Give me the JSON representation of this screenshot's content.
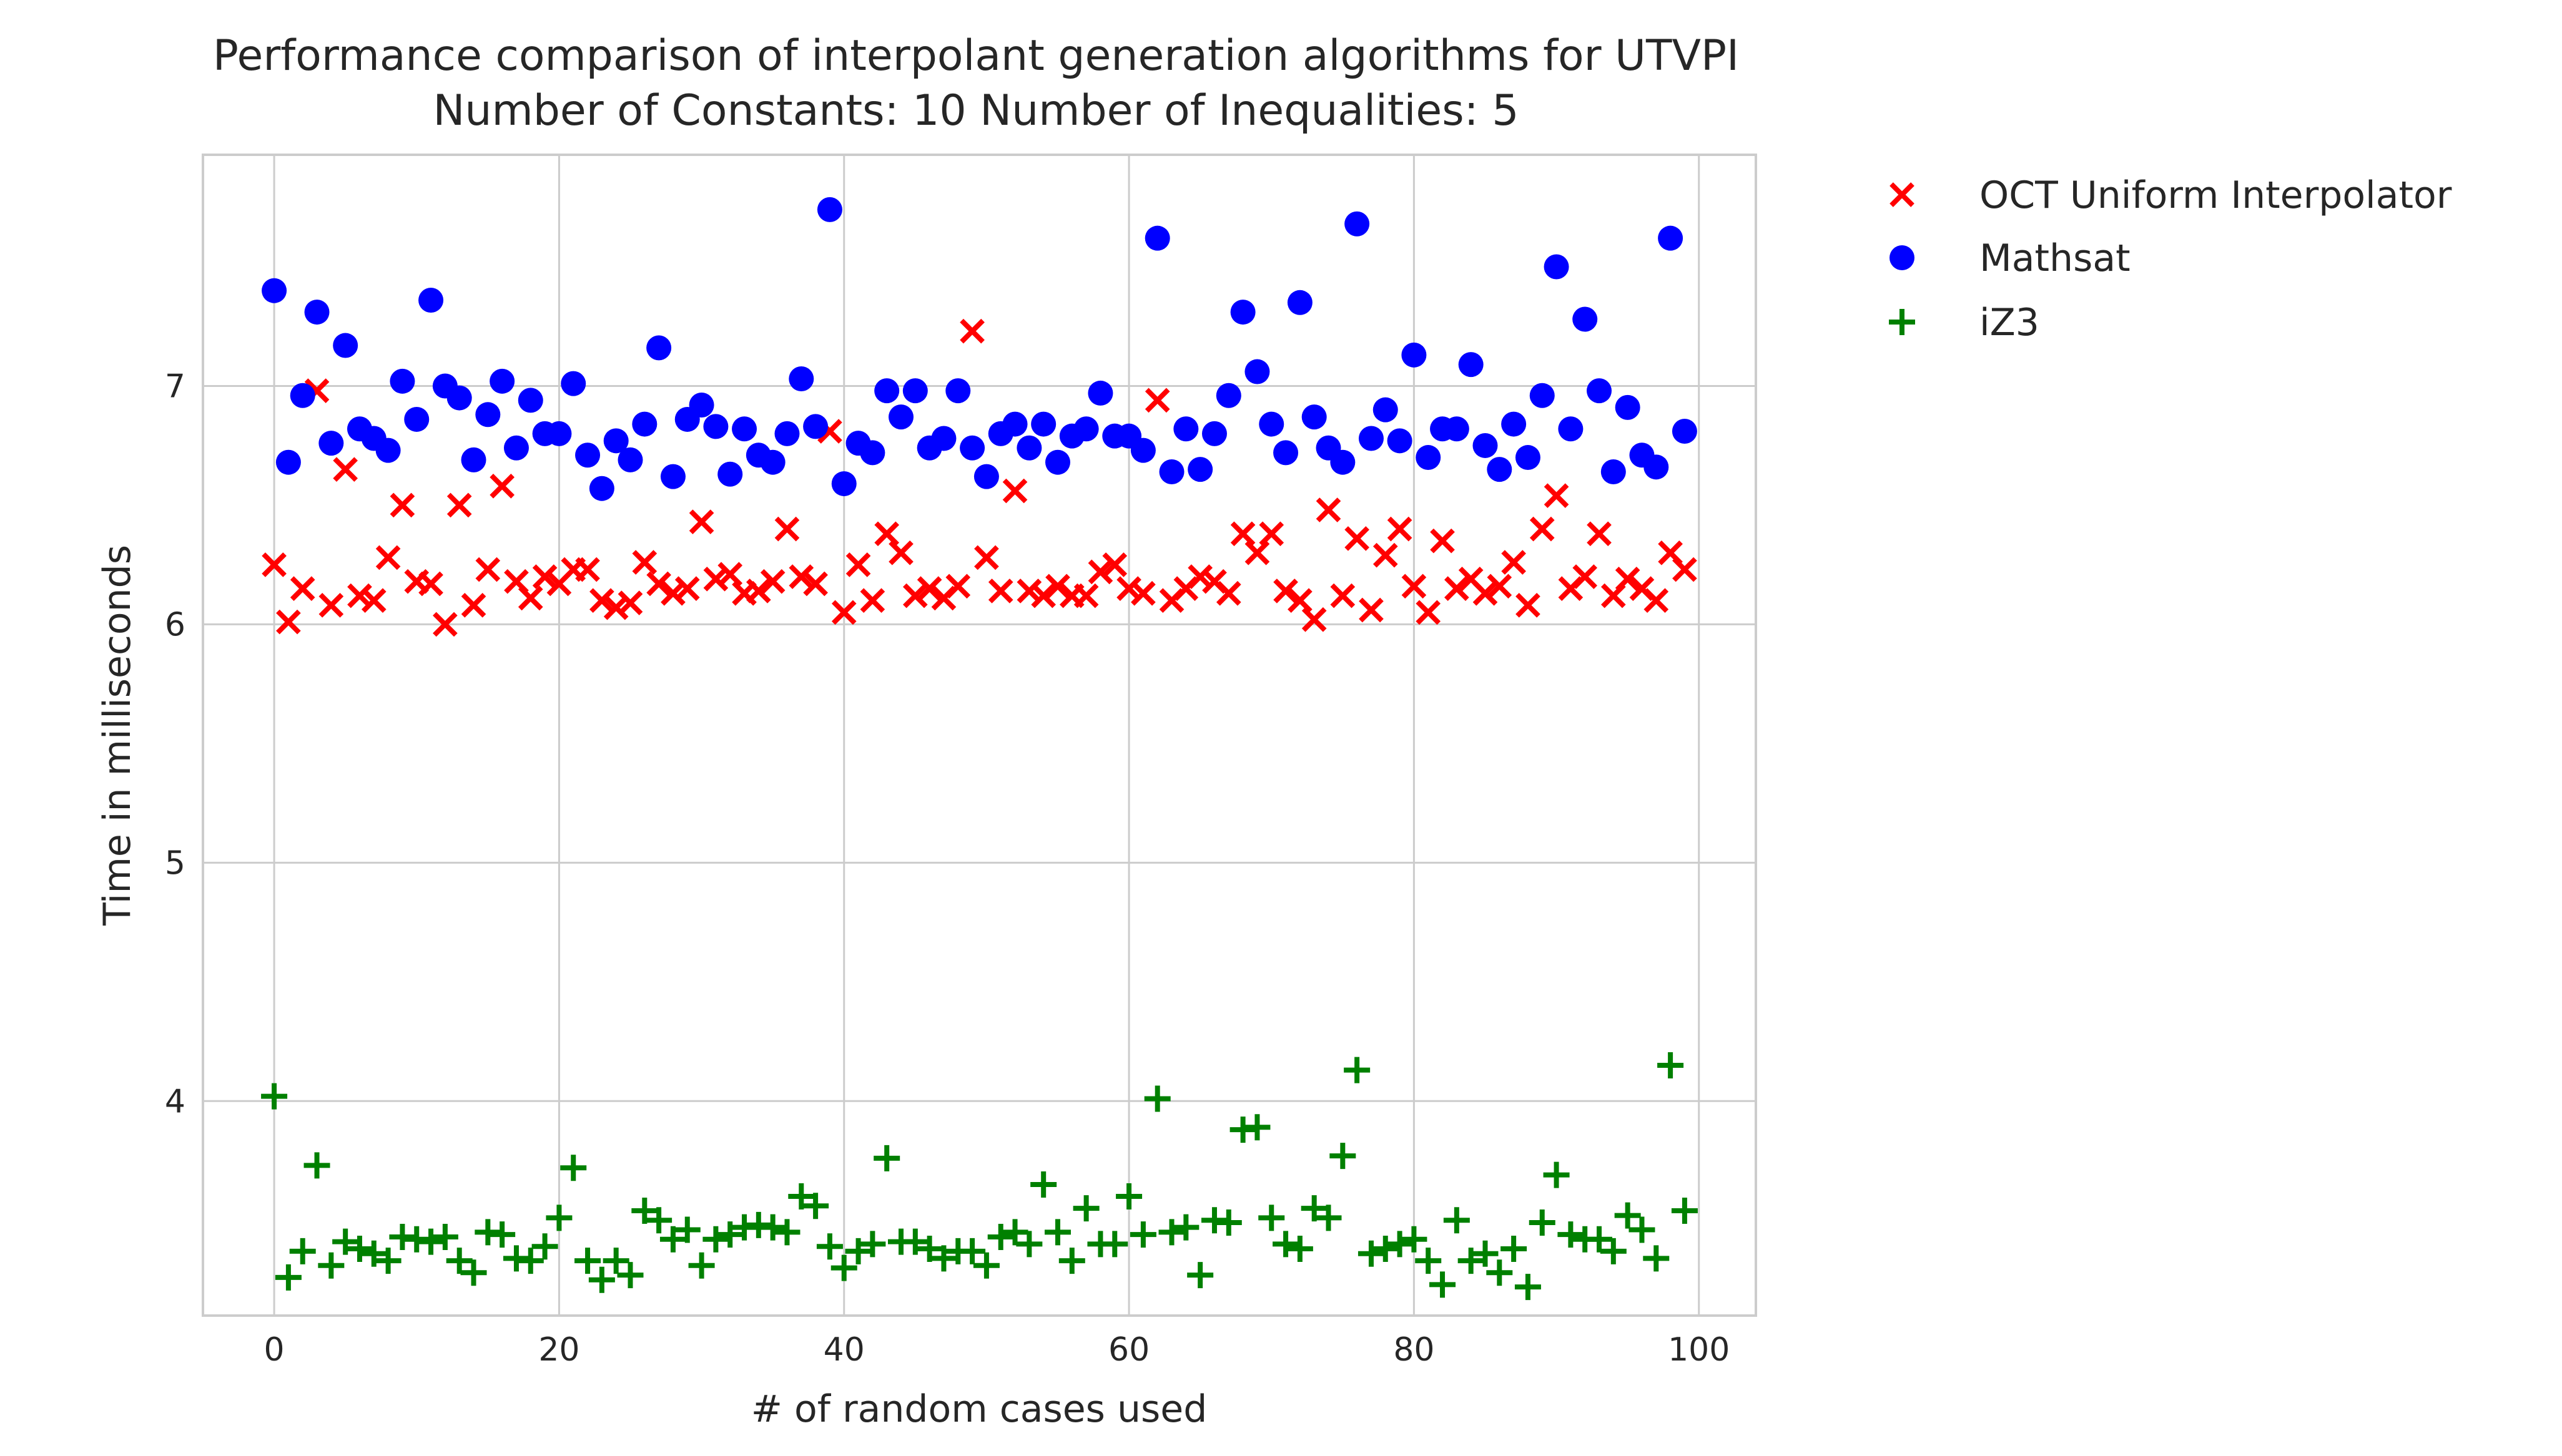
{
  "chart_data": {
    "type": "scatter",
    "title": "Performance comparison of interpolant generation algorithms for UTVPI",
    "subtitle": "Number of Constants: 10 Number of Inequalities: 5",
    "xlabel": "# of random cases used",
    "ylabel": "Time in milliseconds",
    "xlim": [
      -5,
      104
    ],
    "ylim": [
      3.1,
      7.97
    ],
    "xticks": [
      0,
      20,
      40,
      60,
      80,
      100
    ],
    "yticks": [
      4,
      5,
      6,
      7
    ],
    "grid": true,
    "legend_position": "outside-right-top",
    "x": [
      0,
      1,
      2,
      3,
      4,
      5,
      6,
      7,
      8,
      9,
      10,
      11,
      12,
      13,
      14,
      15,
      16,
      17,
      18,
      19,
      20,
      21,
      22,
      23,
      24,
      25,
      26,
      27,
      28,
      29,
      30,
      31,
      32,
      33,
      34,
      35,
      36,
      37,
      38,
      39,
      40,
      41,
      42,
      43,
      44,
      45,
      46,
      47,
      48,
      49,
      50,
      51,
      52,
      53,
      54,
      55,
      56,
      57,
      58,
      59,
      60,
      61,
      62,
      63,
      64,
      65,
      66,
      67,
      68,
      69,
      70,
      71,
      72,
      73,
      74,
      75,
      76,
      77,
      78,
      79,
      80,
      81,
      82,
      83,
      84,
      85,
      86,
      87,
      88,
      89,
      90,
      91,
      92,
      93,
      94,
      95,
      96,
      97,
      98,
      99
    ],
    "series": [
      {
        "name": "OCT Uniform Interpolator",
        "marker": "x",
        "color": "#ff0000",
        "values": [
          6.25,
          6.01,
          6.15,
          6.98,
          6.08,
          6.65,
          6.12,
          6.1,
          6.28,
          6.5,
          6.18,
          6.17,
          6.0,
          6.5,
          6.08,
          6.23,
          6.58,
          6.18,
          6.11,
          6.2,
          6.17,
          6.23,
          6.23,
          6.1,
          6.07,
          6.09,
          6.26,
          6.17,
          6.13,
          6.15,
          6.43,
          6.19,
          6.21,
          6.13,
          6.14,
          6.18,
          6.4,
          6.2,
          6.17,
          6.81,
          6.05,
          6.25,
          6.1,
          6.38,
          6.3,
          6.12,
          6.15,
          6.11,
          6.16,
          7.23,
          6.28,
          6.14,
          6.56,
          6.14,
          6.12,
          6.16,
          6.12,
          6.12,
          6.22,
          6.25,
          6.15,
          6.13,
          6.94,
          6.1,
          6.15,
          6.2,
          6.18,
          6.13,
          6.38,
          6.3,
          6.38,
          6.14,
          6.1,
          6.02,
          6.48,
          6.12,
          6.36,
          6.06,
          6.29,
          6.4,
          6.16,
          6.05,
          6.35,
          6.15,
          6.19,
          6.13,
          6.16,
          6.26,
          6.08,
          6.4,
          6.54,
          6.15,
          6.2,
          6.38,
          6.12,
          6.19,
          6.15,
          6.1,
          6.3,
          6.23
        ]
      },
      {
        "name": "Mathsat",
        "marker": "o",
        "color": "#0000ff",
        "values": [
          7.4,
          6.68,
          6.96,
          7.31,
          6.76,
          7.17,
          6.82,
          6.78,
          6.73,
          7.02,
          6.86,
          7.36,
          7.0,
          6.95,
          6.69,
          6.88,
          7.02,
          6.74,
          6.94,
          6.8,
          6.8,
          7.01,
          6.71,
          6.57,
          6.77,
          6.69,
          6.84,
          7.16,
          6.62,
          6.86,
          6.92,
          6.83,
          6.63,
          6.82,
          6.71,
          6.68,
          6.8,
          7.03,
          6.83,
          7.74,
          6.59,
          6.76,
          6.72,
          6.98,
          6.87,
          6.98,
          6.74,
          6.78,
          6.98,
          6.74,
          6.62,
          6.8,
          6.84,
          6.74,
          6.84,
          6.68,
          6.79,
          6.82,
          6.97,
          6.79,
          6.79,
          6.73,
          7.62,
          6.64,
          6.82,
          6.65,
          6.8,
          6.96,
          7.31,
          7.06,
          6.84,
          6.72,
          7.35,
          6.87,
          6.74,
          6.68,
          7.68,
          6.78,
          6.9,
          6.77,
          7.13,
          6.7,
          6.82,
          6.82,
          7.09,
          6.75,
          6.65,
          6.84,
          6.7,
          6.96,
          7.5,
          6.82,
          7.28,
          6.98,
          6.64,
          6.91,
          6.71,
          6.66,
          7.62,
          6.81
        ]
      },
      {
        "name": "iZ3",
        "marker": "+",
        "color": "#008000",
        "values": [
          4.02,
          3.26,
          3.37,
          3.73,
          3.31,
          3.41,
          3.38,
          3.36,
          3.33,
          3.43,
          3.42,
          3.41,
          3.43,
          3.33,
          3.28,
          3.45,
          3.44,
          3.34,
          3.33,
          3.39,
          3.51,
          3.72,
          3.33,
          3.25,
          3.33,
          3.27,
          3.54,
          3.5,
          3.42,
          3.46,
          3.31,
          3.42,
          3.44,
          3.47,
          3.48,
          3.47,
          3.45,
          3.6,
          3.56,
          3.39,
          3.3,
          3.37,
          3.4,
          3.76,
          3.41,
          3.41,
          3.38,
          3.34,
          3.37,
          3.37,
          3.31,
          3.43,
          3.45,
          3.4,
          3.65,
          3.45,
          3.33,
          3.55,
          3.4,
          3.4,
          3.6,
          3.44,
          4.01,
          3.45,
          3.47,
          3.27,
          3.5,
          3.49,
          3.88,
          3.89,
          3.51,
          3.4,
          3.38,
          3.55,
          3.51,
          3.77,
          4.13,
          3.36,
          3.38,
          3.4,
          3.42,
          3.33,
          3.23,
          3.5,
          3.33,
          3.36,
          3.28,
          3.38,
          3.22,
          3.49,
          3.69,
          3.44,
          3.42,
          3.42,
          3.37,
          3.52,
          3.46,
          3.34,
          4.15,
          3.54
        ]
      }
    ]
  }
}
